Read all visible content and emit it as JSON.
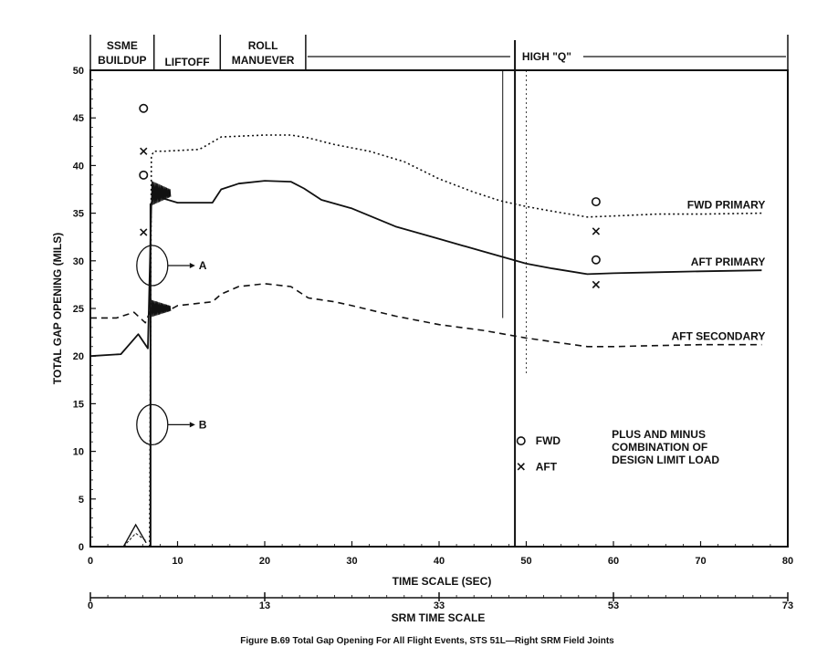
{
  "chart_data": {
    "type": "line",
    "title": "Figure B.69 Total Gap Opening For All Flight Events, STS 51L—Right SRM Field Joints",
    "xlabel": "TIME SCALE (SEC)",
    "ylabel": "TOTAL GAP OPENING (MILS)",
    "xlim": [
      0,
      80
    ],
    "ylim": [
      0,
      50
    ],
    "x_ticks": [
      "0",
      "10",
      "20",
      "30",
      "40",
      "50",
      "60",
      "70",
      "80"
    ],
    "y_ticks": [
      "0",
      "5",
      "10",
      "15",
      "20",
      "25",
      "30",
      "35",
      "40",
      "45",
      "50"
    ],
    "srm_scale": {
      "label": "SRM TIME SCALE",
      "ticks": [
        {
          "label": "0",
          "time": 0
        },
        {
          "label": "13",
          "time": 20
        },
        {
          "label": "33",
          "time": 40
        },
        {
          "label": "53",
          "time": 60
        },
        {
          "label": "73",
          "time": 80
        }
      ]
    },
    "phases": [
      {
        "label": "SSME BUILDUP",
        "start": 0,
        "end": 7.3
      },
      {
        "label": "LIFTOFF",
        "start": 7.3,
        "end": 14.9
      },
      {
        "label": "ROLL MANUEVER",
        "start": 14.9,
        "end": 24.7
      },
      {
        "label": "HIGH \"Q\"",
        "start": 24.7,
        "end": 80
      }
    ],
    "series": [
      {
        "name": "FWD PRIMARY",
        "style": "dotted",
        "x": [
          0,
          6.8,
          7.0,
          7.3,
          8.5,
          12.5,
          13.5,
          15,
          20,
          23,
          25,
          28,
          32,
          36,
          40,
          44,
          47,
          50,
          53,
          57,
          60,
          65,
          70,
          77
        ],
        "y": [
          0,
          0,
          41,
          41.5,
          41.5,
          41.7,
          42.2,
          43,
          43.2,
          43.2,
          42.9,
          42.2,
          41.5,
          40.4,
          38.6,
          37.2,
          36.3,
          35.7,
          35.2,
          34.6,
          34.7,
          34.9,
          34.9,
          35
        ]
      },
      {
        "name": "AFT PRIMARY",
        "style": "solid",
        "x": [
          0,
          3.5,
          5.5,
          6.6,
          7.0,
          7.5,
          8.5,
          10,
          12,
          14,
          15,
          17,
          20,
          23,
          24.5,
          26.5,
          30,
          35,
          40,
          45,
          50,
          53,
          57,
          60,
          65,
          70,
          77
        ],
        "y": [
          20,
          20.2,
          22.3,
          20.8,
          36,
          37.5,
          36.5,
          36.1,
          36.1,
          36.1,
          37.5,
          38.1,
          38.4,
          38.3,
          37.6,
          36.4,
          35.5,
          33.6,
          32.3,
          31,
          29.7,
          29.2,
          28.6,
          28.7,
          28.8,
          28.9,
          29
        ]
      },
      {
        "name": "AFT SECONDARY",
        "style": "dashed",
        "x": [
          0,
          3,
          5,
          6.3,
          7.0,
          7.5,
          9,
          10,
          12,
          14,
          15,
          17,
          20,
          23,
          25,
          28,
          30,
          35,
          40,
          45,
          50,
          53,
          57,
          60,
          65,
          70,
          77
        ],
        "y": [
          24,
          24,
          24.6,
          23.5,
          25,
          25.3,
          24.8,
          25.3,
          25.5,
          25.7,
          26.5,
          27.3,
          27.6,
          27.3,
          26.1,
          25.7,
          25.3,
          24.2,
          23.3,
          22.7,
          21.9,
          21.5,
          21,
          21,
          21.1,
          21.2,
          21.2
        ]
      }
    ],
    "design_limit_markers": [
      {
        "type": "O",
        "x": 6.1,
        "y": 46
      },
      {
        "type": "X",
        "x": 6.1,
        "y": 41.5
      },
      {
        "type": "O",
        "x": 6.1,
        "y": 39
      },
      {
        "type": "X",
        "x": 6.1,
        "y": 33
      },
      {
        "type": "O",
        "x": 58,
        "y": 36.2
      },
      {
        "type": "X",
        "x": 58,
        "y": 33.1
      },
      {
        "type": "O",
        "x": 58,
        "y": 30.1
      },
      {
        "type": "X",
        "x": 58,
        "y": 27.5
      }
    ],
    "annotations": [
      {
        "id": "A",
        "label": "A",
        "x": 7.1,
        "y": 29.5
      },
      {
        "id": "B",
        "label": "B",
        "x": 7.1,
        "y": 12.8
      }
    ],
    "legend": {
      "fwd_label": "FWD",
      "aft_label": "AFT",
      "fwd_symbol": "O",
      "aft_symbol": "X",
      "note_lines": [
        "PLUS AND MINUS",
        "COMBINATION OF",
        "DESIGN LIMIT LOAD"
      ]
    },
    "grid": false
  }
}
